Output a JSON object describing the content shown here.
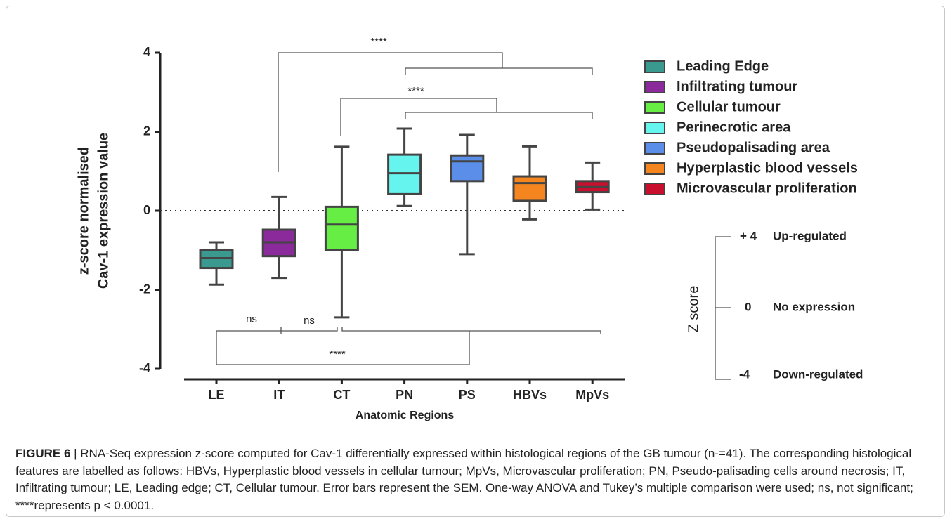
{
  "chart_data": {
    "type": "box",
    "y_label_lines": [
      "z-score normalised",
      "Cav-1 expression value"
    ],
    "x_label": "Anatomic Regions",
    "categories": [
      "LE",
      "IT",
      "CT",
      "PN",
      "PS",
      "HBVs",
      "MpVs"
    ],
    "ylim": [
      -4,
      4
    ],
    "yticks": [
      4,
      2,
      0,
      -2,
      -4
    ],
    "reference_line": 0,
    "series": [
      {
        "name": "Leading Edge",
        "color": "#3a9a8f",
        "min": -1.87,
        "q1": -1.45,
        "median": -1.2,
        "q3": -1.0,
        "max": -0.8
      },
      {
        "name": "Infiltrating tumour",
        "color": "#8b2a9b",
        "min": -1.7,
        "q1": -1.15,
        "median": -0.8,
        "q3": -0.48,
        "max": 0.35
      },
      {
        "name": "Cellular tumour",
        "color": "#66ee44",
        "min": -2.7,
        "q1": -1.0,
        "median": -0.35,
        "q3": 0.1,
        "max": 1.62
      },
      {
        "name": "Perinecrotic area",
        "color": "#66f5ee",
        "min": 0.12,
        "q1": 0.42,
        "median": 0.95,
        "q3": 1.42,
        "max": 2.08
      },
      {
        "name": "Pseudopalisading area",
        "color": "#5b8ee8",
        "min": -1.1,
        "q1": 0.75,
        "median": 1.25,
        "q3": 1.4,
        "max": 1.92
      },
      {
        "name": "Hyperplastic blood vessels",
        "color": "#f5861f",
        "min": -0.22,
        "q1": 0.25,
        "median": 0.7,
        "q3": 0.87,
        "max": 1.63
      },
      {
        "name": "Microvascular proliferation",
        "color": "#c8102e",
        "min": 0.03,
        "q1": 0.47,
        "median": 0.6,
        "q3": 0.75,
        "max": 1.22
      }
    ],
    "annotations": [
      "****",
      "****",
      "ns",
      "ns",
      "****"
    ],
    "z_scale": {
      "title": "Z score",
      "rows": [
        [
          "+ 4",
          "Up-regulated"
        ],
        [
          "0",
          "No expression"
        ],
        [
          "-4",
          "Down-regulated"
        ]
      ]
    }
  },
  "caption": {
    "label": "FIGURE 6",
    "text": "| RNA-Seq expression z-score computed for Cav-1 differentially expressed within histological regions of the GB tumour (n-=41). The corresponding histological features are labelled as follows: HBVs, Hyperplastic blood vessels in cellular tumour; MpVs, Microvascular proliferation; PN, Pseudo-palisading cells around necrosis; IT, Infiltrating tumour; LE, Leading edge; CT, Cellular tumour. Error bars represent the SEM. One-way ANOVA and Tukey’s multiple comparison were used; ns, not significant; ****represents p < 0.0001."
  }
}
